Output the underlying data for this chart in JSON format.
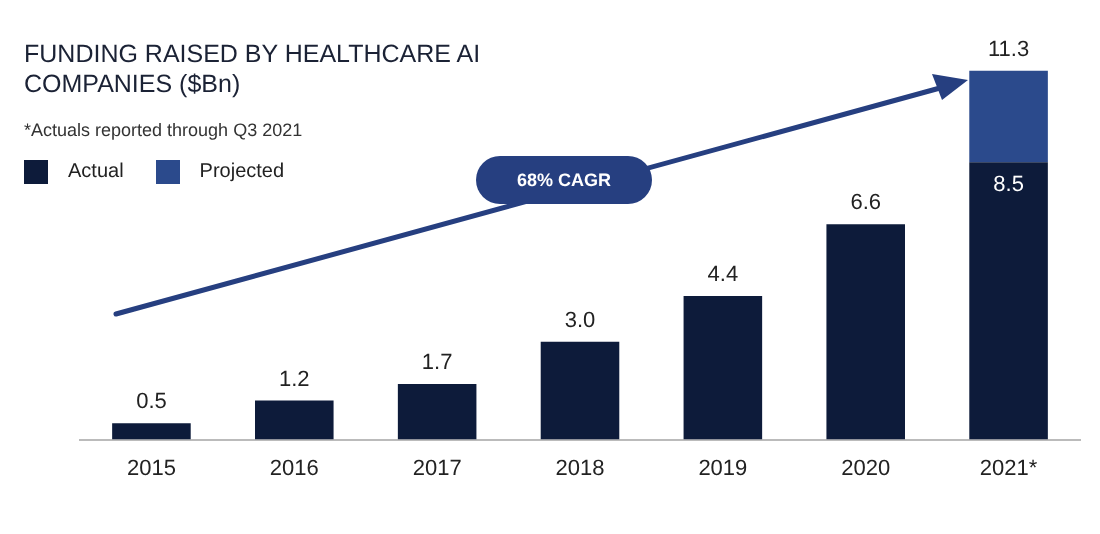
{
  "chart_data": {
    "type": "bar",
    "title": "FUNDING RAISED BY HEALTHCARE AI COMPANIES ($Bn)",
    "stacked": true,
    "legend": "top left",
    "categories": [
      "2015",
      "2016",
      "2017",
      "2018",
      "2019",
      "2020",
      "2021*"
    ],
    "series": [
      {
        "name": "Actual",
        "color": "#0d1b3a",
        "values": [
          0.5,
          1.2,
          1.7,
          3.0,
          4.4,
          6.6,
          8.5
        ],
        "value_labels": [
          "0.5",
          "1.2",
          "1.7",
          "3.0",
          "4.4",
          "6.6",
          "8.5"
        ]
      },
      {
        "name": "Projected",
        "color": "#2b4a8c",
        "values": [
          null,
          null,
          null,
          null,
          null,
          null,
          2.8
        ]
      }
    ],
    "totals": [
      null,
      null,
      null,
      null,
      null,
      null,
      "11.3"
    ],
    "annotations": [
      "*Actuals reported through Q3 2021",
      "68% CAGR"
    ],
    "grid": false
  }
}
